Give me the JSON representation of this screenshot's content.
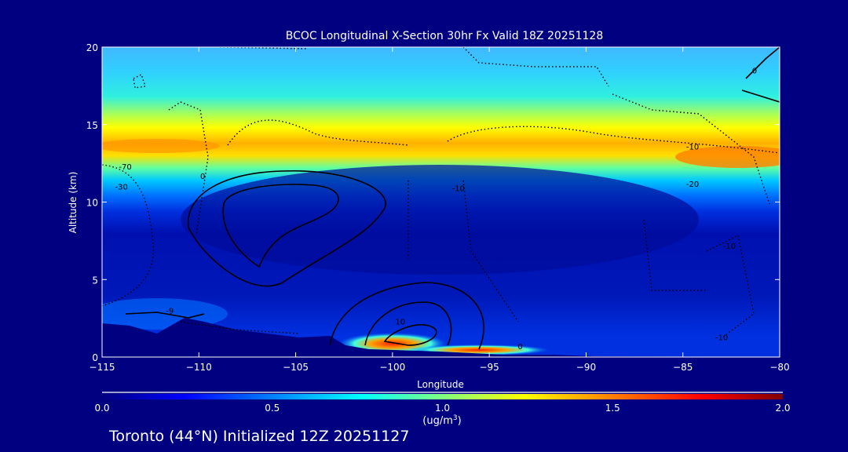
{
  "chart_data": {
    "type": "heatmap",
    "title": "BCOC Longitudinal X-Section 30hr  Fx Valid 18Z 20251128",
    "xlabel": "Longitude",
    "ylabel": "Altitude (km)",
    "xlim": [
      -115,
      -80
    ],
    "ylim": [
      0,
      20
    ],
    "xticks": [
      -115,
      -110,
      -105,
      -100,
      -95,
      -90,
      -85,
      -80
    ],
    "xtick_labels": [
      "−115",
      "−110",
      "−105",
      "−100",
      "−95",
      "−90",
      "−85",
      "−80"
    ],
    "yticks": [
      0,
      5,
      10,
      15,
      20
    ],
    "ytick_labels": [
      "0",
      "5",
      "10",
      "15",
      "20"
    ],
    "colorbar": {
      "range": [
        0.0,
        2.0
      ],
      "ticks": [
        "0.0",
        "0.5",
        "1.0",
        "1.5",
        "2.0"
      ],
      "unit_label": "(ug/m",
      "unit_sup": "3",
      "unit_close": ")",
      "colors": [
        "#000080",
        "#0000ff",
        "#00ffff",
        "#ffff00",
        "#ff0000",
        "#800000"
      ]
    },
    "contour_labels": [
      {
        "text": "0",
        "lon": -109.8,
        "alt": 11.5
      },
      {
        "text": "-70",
        "lon": -113.8,
        "alt": 12.1
      },
      {
        "text": "-30",
        "lon": -114,
        "alt": 10.8
      },
      {
        "text": "-10",
        "lon": -84.5,
        "alt": 13.4
      },
      {
        "text": "-20",
        "lon": -84.5,
        "alt": 11.0
      },
      {
        "text": "0",
        "lon": -81.3,
        "alt": 18.3
      },
      {
        "text": "10",
        "lon": -99.6,
        "alt": 2.1
      },
      {
        "text": "0",
        "lon": -93.4,
        "alt": 0.5
      },
      {
        "text": "-10",
        "lon": -96.6,
        "alt": 10.7
      },
      {
        "text": "-10",
        "lon": -83,
        "alt": 1.1
      },
      {
        "text": "-10",
        "lon": -82.6,
        "alt": 7.0
      },
      {
        "text": "-9",
        "lon": -111.5,
        "alt": 2.8
      }
    ]
  },
  "footer": "Toronto (44°N) Initialized 12Z 20251127"
}
